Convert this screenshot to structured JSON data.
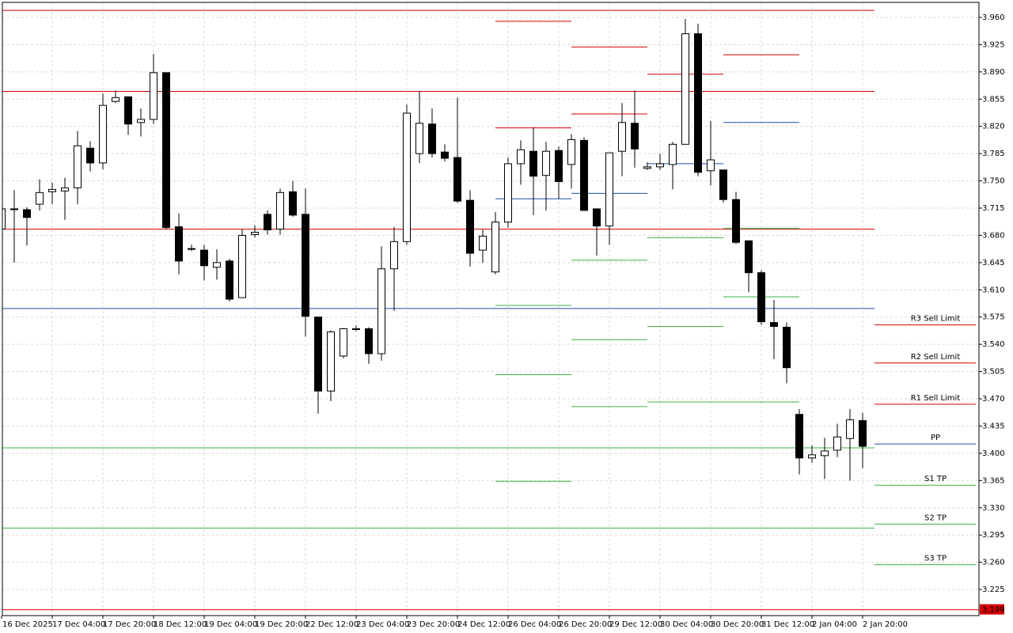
{
  "chart_data": {
    "type": "candlestick",
    "categories": [
      "16 Dec 2025",
      null,
      null,
      null,
      "17 Dec 04:00",
      null,
      null,
      null,
      "17 Dec 20:00",
      null,
      null,
      null,
      "18 Dec 12:00",
      null,
      null,
      null,
      "19 Dec 04:00",
      null,
      null,
      null,
      "19 Dec 20:00",
      null,
      null,
      null,
      "22 Dec 12:00",
      null,
      null,
      null,
      "23 Dec 04:00",
      null,
      null,
      null,
      "23 Dec 20:00",
      null,
      null,
      null,
      "24 Dec 12:00",
      null,
      null,
      null,
      "26 Dec 04:00",
      null,
      null,
      null,
      "26 Dec 20:00",
      null,
      null,
      null,
      "29 Dec 12:00",
      null,
      null,
      null,
      "30 Dec 04:00",
      null,
      null,
      null,
      "30 Dec 20:00",
      null,
      null,
      null,
      "31 Dec 12:00",
      null,
      null,
      null,
      "2 Jan 04:00",
      null,
      null,
      null,
      "2 Jan 20:00"
    ],
    "open": [
      3.688,
      3.713,
      3.713,
      3.72,
      3.736,
      3.737,
      3.741,
      3.792,
      3.773,
      3.852,
      3.858,
      3.825,
      3.829,
      3.889,
      3.691,
      3.663,
      3.661,
      3.639,
      3.647,
      3.6,
      3.681,
      3.707,
      3.688,
      3.736,
      3.707,
      3.575,
      3.48,
      3.525,
      3.56,
      3.56,
      3.528,
      3.637,
      3.672,
      3.785,
      3.823,
      3.787,
      3.78,
      3.725,
      3.661,
      3.633,
      3.697,
      3.772,
      3.788,
      3.757,
      3.789,
      3.771,
      3.802,
      3.714,
      3.692,
      3.788,
      3.824,
      3.766,
      3.768,
      3.771,
      3.797,
      3.939,
      3.763,
      3.764,
      3.726,
      3.673,
      3.632,
      3.568,
      3.562,
      3.45,
      3.394,
      3.397,
      3.404,
      3.419,
      3.442
    ],
    "high": [
      3.716,
      3.738,
      3.716,
      3.752,
      3.748,
      3.754,
      3.814,
      3.801,
      3.862,
      3.866,
      3.858,
      3.843,
      3.913,
      3.889,
      3.708,
      3.668,
      3.668,
      3.662,
      3.65,
      3.688,
      3.693,
      3.712,
      3.74,
      3.75,
      3.74,
      3.575,
      3.558,
      3.561,
      3.564,
      3.562,
      3.666,
      3.691,
      3.848,
      3.865,
      3.843,
      3.797,
      3.857,
      3.738,
      3.687,
      3.71,
      3.78,
      3.802,
      3.819,
      3.8,
      3.794,
      3.81,
      3.806,
      3.714,
      3.786,
      3.85,
      3.866,
      3.774,
      3.785,
      3.8,
      3.958,
      3.952,
      3.827,
      3.764,
      3.736,
      3.673,
      3.635,
      3.597,
      3.568,
      3.457,
      3.41,
      3.42,
      3.438,
      3.457,
      3.452
    ],
    "low": [
      3.686,
      3.645,
      3.667,
      3.712,
      3.72,
      3.7,
      3.72,
      3.762,
      3.765,
      3.85,
      3.809,
      3.807,
      3.823,
      3.688,
      3.63,
      3.66,
      3.622,
      3.623,
      3.595,
      3.6,
      3.677,
      3.681,
      3.681,
      3.704,
      3.55,
      3.451,
      3.467,
      3.522,
      3.557,
      3.515,
      3.519,
      3.583,
      3.668,
      3.773,
      3.78,
      3.775,
      3.722,
      3.64,
      3.645,
      3.63,
      3.69,
      3.745,
      3.706,
      3.712,
      3.727,
      3.74,
      3.712,
      3.654,
      3.668,
      3.756,
      3.767,
      3.764,
      3.764,
      3.739,
      3.797,
      3.756,
      3.744,
      3.722,
      3.669,
      3.607,
      3.565,
      3.521,
      3.49,
      3.373,
      3.388,
      3.367,
      3.395,
      3.365,
      3.381
    ],
    "close": [
      3.714,
      3.714,
      3.703,
      3.735,
      3.739,
      3.741,
      3.795,
      3.773,
      3.847,
      3.857,
      3.823,
      3.829,
      3.889,
      3.69,
      3.647,
      3.662,
      3.641,
      3.645,
      3.598,
      3.68,
      3.684,
      3.687,
      3.735,
      3.706,
      3.576,
      3.48,
      3.556,
      3.56,
      3.559,
      3.528,
      3.637,
      3.672,
      3.837,
      3.824,
      3.785,
      3.779,
      3.724,
      3.657,
      3.679,
      3.697,
      3.772,
      3.79,
      3.756,
      3.788,
      3.749,
      3.803,
      3.712,
      3.692,
      3.786,
      3.825,
      3.791,
      3.768,
      3.772,
      3.797,
      3.939,
      3.761,
      3.777,
      3.726,
      3.671,
      3.632,
      3.569,
      3.563,
      3.51,
      3.394,
      3.398,
      3.403,
      3.421,
      3.443,
      3.409
    ],
    "bull_color": "#ffffff",
    "bear_color": "#000000",
    "ylim": [
      3.1915,
      3.9793
    ],
    "yticks": [
      {
        "value": 3.96,
        "label": "3.960"
      },
      3.925,
      {
        "value": 3.89,
        "label": "3.890"
      },
      3.855,
      {
        "value": 3.82,
        "label": "3.820"
      },
      3.785,
      {
        "value": 3.75,
        "label": "3.750"
      },
      3.715,
      {
        "value": 3.68,
        "label": "3.680"
      },
      3.645,
      {
        "value": 3.61,
        "label": "3.610"
      },
      3.575,
      {
        "value": 3.54,
        "label": "3.540"
      },
      3.505,
      {
        "value": 3.47,
        "label": "3.470"
      },
      3.435,
      {
        "value": 3.4,
        "label": "3.400"
      },
      3.365,
      {
        "value": 3.33,
        "label": "3.330"
      },
      3.295,
      {
        "value": 3.26,
        "label": "3.260"
      },
      3.225
    ],
    "grid": true,
    "levels": [
      {
        "value": 3.969,
        "color": "#d40000"
      },
      {
        "value": 3.865,
        "color": "#d40000"
      },
      {
        "value": 3.688,
        "color": "#d40000"
      },
      {
        "value": 3.586,
        "color": "#1f4fa8"
      },
      {
        "value": 3.407,
        "color": "#3cb043"
      },
      {
        "value": 3.304,
        "color": "#3cb043"
      }
    ],
    "segments": [
      {
        "x": [
          39,
          45
        ],
        "levels": [
          {
            "value": 3.955,
            "color": "#d40000"
          },
          {
            "value": 3.818,
            "color": "#d40000"
          },
          {
            "value": 3.727,
            "color": "#1f4fa8"
          },
          {
            "value": 3.59,
            "color": "#3cb043"
          },
          {
            "value": 3.501,
            "color": "#3cb043"
          },
          {
            "value": 3.364,
            "color": "#3cb043"
          }
        ]
      },
      {
        "x": [
          45,
          51
        ],
        "levels": [
          {
            "value": 3.922,
            "color": "#d40000"
          },
          {
            "value": 3.836,
            "color": "#d40000"
          },
          {
            "value": 3.734,
            "color": "#1f4fa8"
          },
          {
            "value": 3.648,
            "color": "#3cb043"
          },
          {
            "value": 3.546,
            "color": "#3cb043"
          },
          {
            "value": 3.46,
            "color": "#3cb043"
          }
        ]
      },
      {
        "x": [
          51,
          57
        ],
        "levels": [
          {
            "value": 3.887,
            "color": "#d40000"
          },
          {
            "value": 3.772,
            "color": "#1f4fa8"
          },
          {
            "value": 3.677,
            "color": "#3cb043"
          },
          {
            "value": 3.563,
            "color": "#3cb043"
          },
          {
            "value": 3.466,
            "color": "#3cb043"
          }
        ]
      },
      {
        "x": [
          57,
          63
        ],
        "levels": [
          {
            "value": 3.912,
            "color": "#d40000"
          },
          {
            "value": 3.825,
            "color": "#1f4fa8"
          },
          {
            "value": 3.689,
            "color": "#3cb043"
          },
          {
            "value": 3.601,
            "color": "#3cb043"
          },
          {
            "value": 3.466,
            "color": "#3cb043"
          }
        ]
      }
    ],
    "orders": [
      {
        "label": "R3 Sell Limit",
        "value": 3.565,
        "color": "#d40000"
      },
      {
        "label": "R2 Sell Limit",
        "value": 3.516,
        "color": "#d40000"
      },
      {
        "label": "R1 Sell Limit",
        "value": 3.463,
        "color": "#d40000"
      },
      {
        "label": "PP",
        "value": 3.412,
        "color": "#1f4fa8"
      },
      {
        "label": "S1 TP",
        "value": 3.359,
        "color": "#3cb043"
      },
      {
        "label": "S2 TP",
        "value": 3.309,
        "color": "#3cb043"
      },
      {
        "label": "S3 TP",
        "value": 3.257,
        "color": "#3cb043"
      }
    ],
    "price_line": {
      "value": 3.199,
      "color": "#d40000"
    }
  }
}
